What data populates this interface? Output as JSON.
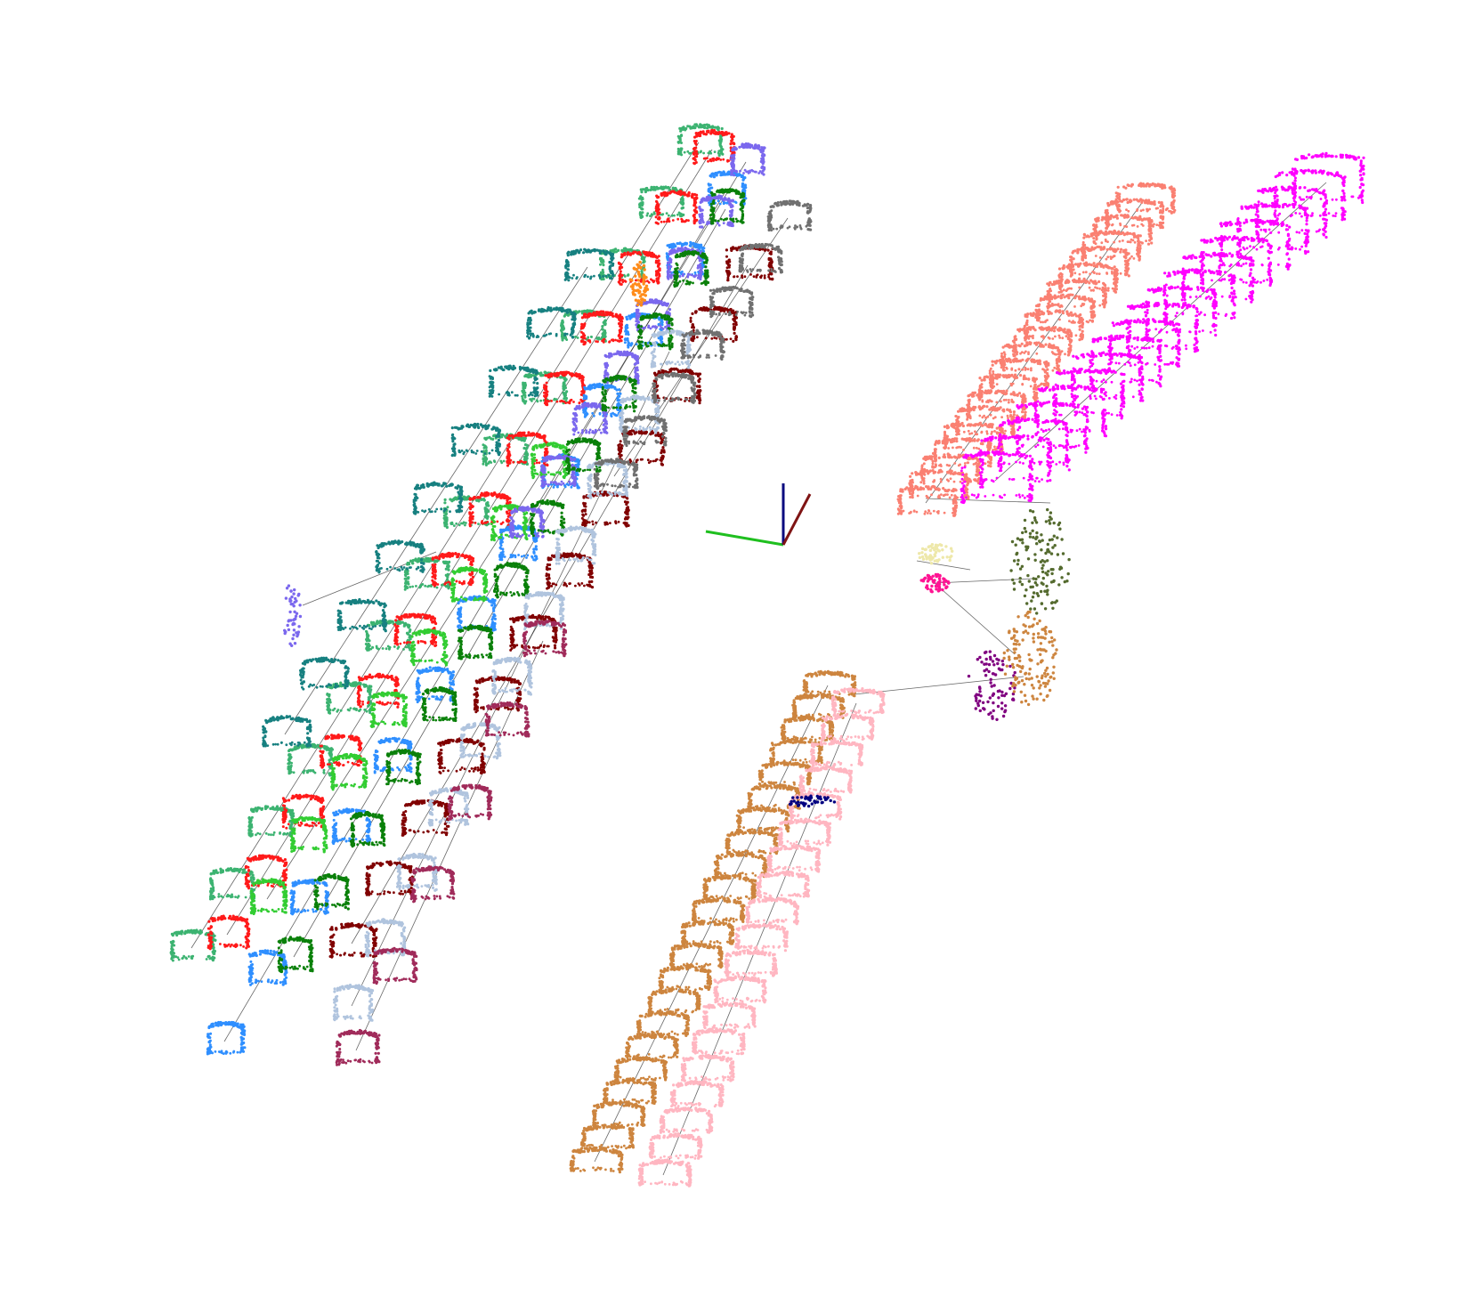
{
  "scene": {
    "kind": "3d-point-cloud-segmentation",
    "background": "#ffffff",
    "edge_color": "#000000"
  },
  "axes_gizmo": {
    "x_color": "#7f1414",
    "y_color": "#1fbf1f",
    "z_color": "#0b0b7f"
  },
  "clusters": [
    {
      "name": "left-row-seagreen",
      "color": "#3cb371",
      "shape": "chair-row"
    },
    {
      "name": "left-row-teal",
      "color": "#178080",
      "shape": "chair-row"
    },
    {
      "name": "left-row-red",
      "color": "#ff1a1a",
      "shape": "chair-row"
    },
    {
      "name": "left-row-dodgerblue",
      "color": "#2f8fff",
      "shape": "chair-row"
    },
    {
      "name": "left-row-limegreen",
      "color": "#32cd32",
      "shape": "chair-row"
    },
    {
      "name": "left-row-mediumslateblue",
      "color": "#7b68ee",
      "shape": "chair-row"
    },
    {
      "name": "left-row-green",
      "color": "#0a800a",
      "shape": "chair-row"
    },
    {
      "name": "left-row-maroon",
      "color": "#800000",
      "shape": "chair-row"
    },
    {
      "name": "left-row-lightsteelblue",
      "color": "#b0c4de",
      "shape": "chair-row"
    },
    {
      "name": "left-row-gray",
      "color": "#707070",
      "shape": "chair-row"
    },
    {
      "name": "left-row-crimson",
      "color": "#a02b5a",
      "shape": "chair-row"
    },
    {
      "name": "left-row-orange",
      "color": "#ff8c1a",
      "shape": "fragment"
    },
    {
      "name": "right-row-salmon",
      "color": "#fa8072",
      "shape": "chair-row"
    },
    {
      "name": "right-row-magenta",
      "color": "#ff00ff",
      "shape": "chair-row"
    },
    {
      "name": "bottom-row-peru",
      "color": "#cd853f",
      "shape": "chair-row"
    },
    {
      "name": "bottom-row-pink",
      "color": "#ffb6c1",
      "shape": "chair-row"
    },
    {
      "name": "navy-fragment",
      "color": "#000080",
      "shape": "fragment"
    },
    {
      "name": "darkolivegreen-fragment",
      "color": "#556b2f",
      "shape": "fragment"
    },
    {
      "name": "purple-fragment",
      "color": "#800080",
      "shape": "fragment"
    },
    {
      "name": "khaki-fragment",
      "color": "#eee8aa",
      "shape": "fragment"
    },
    {
      "name": "deeppink-fragment",
      "color": "#ff1493",
      "shape": "fragment"
    },
    {
      "name": "peru-fragment",
      "color": "#cd853f",
      "shape": "fragment"
    },
    {
      "name": "slateblue-fragment",
      "color": "#7b68ee",
      "shape": "fragment"
    }
  ]
}
